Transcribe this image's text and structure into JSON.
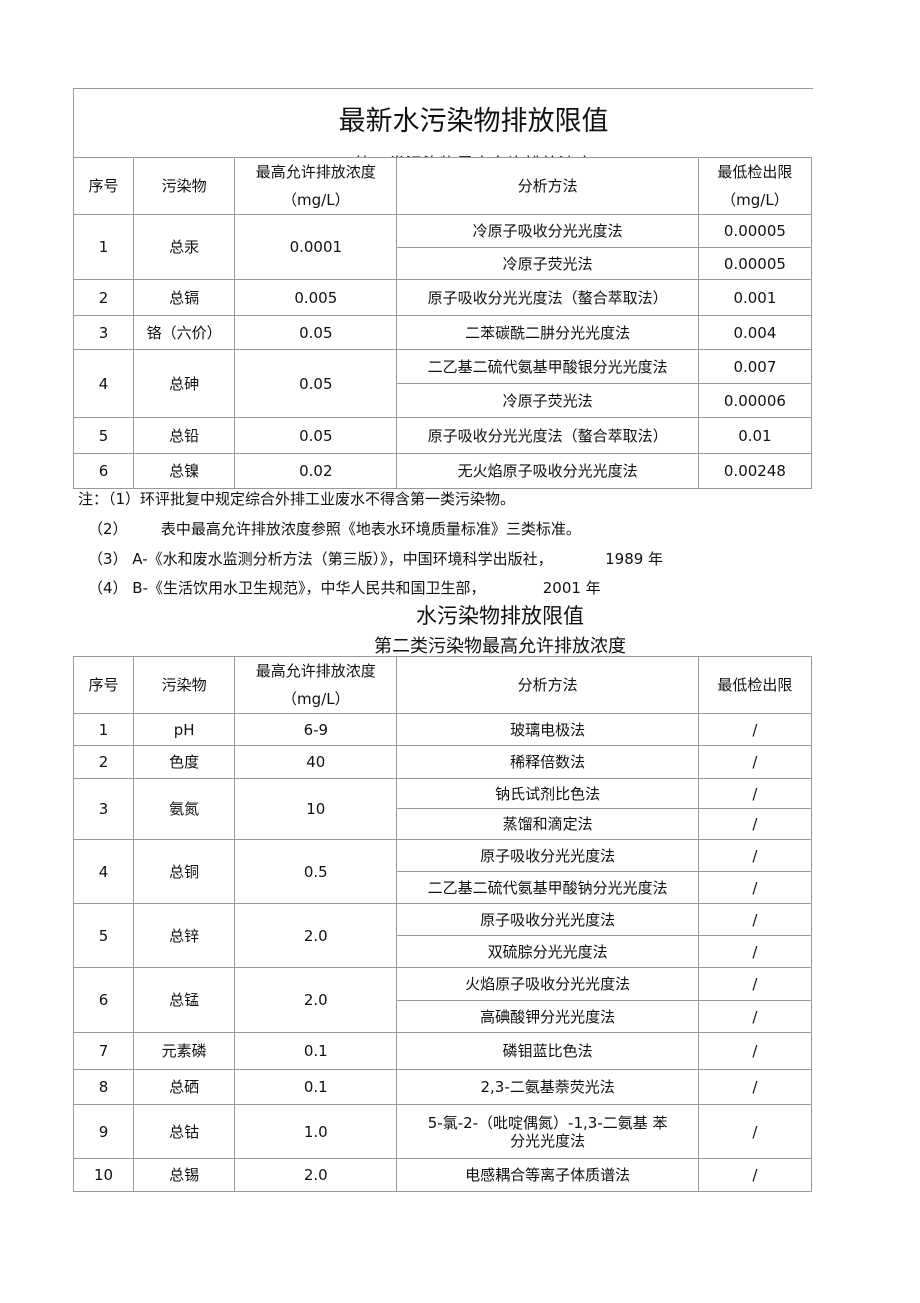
{
  "doc": {
    "title": "最新水污染物排放限值",
    "subtitle1": "第一类污染物最高允许排放浓度",
    "headers1": [
      "序号",
      "污染物",
      "最高允许排放浓度\n（mg/L）",
      "分析方法",
      "最低检出限\n（mg/L）"
    ],
    "table1": [
      {
        "no": "1",
        "name": "总汞",
        "limit": "0.0001",
        "methods": [
          [
            "冷原子吸收分光光度法",
            "0.00005"
          ],
          [
            "冷原子荧光法",
            "0.00005"
          ]
        ]
      },
      {
        "no": "2",
        "name": "总镉",
        "limit": "0.005",
        "methods": [
          [
            "原子吸收分光光度法（螯合萃取法）",
            "0.001"
          ]
        ]
      },
      {
        "no": "3",
        "name": "铬（六价）",
        "limit": "0.05",
        "methods": [
          [
            "二苯碳酰二肼分光光度法",
            "0.004"
          ]
        ]
      },
      {
        "no": "4",
        "name": "总砷",
        "limit": "0.05",
        "methods": [
          [
            "二乙基二硫代氨基甲酸银分光光度法",
            "0.007"
          ],
          [
            "冷原子荧光法",
            "0.00006"
          ]
        ]
      },
      {
        "no": "5",
        "name": "总铅",
        "limit": "0.05",
        "methods": [
          [
            "原子吸收分光光度法（螯合萃取法）",
            "0.01"
          ]
        ]
      },
      {
        "no": "6",
        "name": "总镍",
        "limit": "0.02",
        "methods": [
          [
            "无火焰原子吸收分光光度法",
            "0.00248"
          ]
        ]
      }
    ],
    "notes": [
      "注：（1）环评批复中规定综合外排工业废水不得含第一类污染物。",
      "（2）       表中最高允许排放浓度参照《地表水环境质量标准》三类标准。",
      "（3） A-《水和废水监测分析方法（第三版）》，中国环境科学出版社，           1989 年",
      "（4） B-《生活饮用水卫生规范》，中华人民共和国卫生部，            2001 年"
    ],
    "title2": "水污染物排放限值",
    "subtitle2": "第二类污染物最高允许排放浓度",
    "headers2": [
      "序号",
      "污染物",
      "最高允许排放浓度\n（mg/L）",
      "分析方法",
      "最低检出限"
    ],
    "table2": [
      {
        "no": "1",
        "name": "pH",
        "limit": "6-9",
        "methods": [
          [
            "玻璃电极法",
            "/"
          ]
        ]
      },
      {
        "no": "2",
        "name": "色度",
        "limit": "40",
        "methods": [
          [
            "稀释倍数法",
            "/"
          ]
        ]
      },
      {
        "no": "3",
        "name": "氨氮",
        "limit": "10",
        "methods": [
          [
            "钠氏试剂比色法",
            "/"
          ],
          [
            "蒸馏和滴定法",
            "/"
          ]
        ]
      },
      {
        "no": "4",
        "name": "总铜",
        "limit": "0.5",
        "methods": [
          [
            "原子吸收分光光度法",
            "/"
          ],
          [
            "二乙基二硫代氨基甲酸钠分光光度法",
            "/"
          ]
        ]
      },
      {
        "no": "5",
        "name": "总锌",
        "limit": "2.0",
        "methods": [
          [
            "原子吸收分光光度法",
            "/"
          ],
          [
            "双硫腙分光光度法",
            "/"
          ]
        ]
      },
      {
        "no": "6",
        "name": "总锰",
        "limit": "2.0",
        "methods": [
          [
            "火焰原子吸收分光光度法",
            "/"
          ],
          [
            "高碘酸钾分光光度法",
            "/"
          ]
        ]
      },
      {
        "no": "7",
        "name": "元素磷",
        "limit": "0.1",
        "methods": [
          [
            "磷钼蓝比色法",
            "/"
          ]
        ]
      },
      {
        "no": "8",
        "name": "总硒",
        "limit": "0.1",
        "methods": [
          [
            "2,3-二氨基萘荧光法",
            "/"
          ]
        ]
      },
      {
        "no": "9",
        "name": "总钴",
        "limit": "1.0",
        "methods": [
          [
            "5-氯-2-（吡啶偶氮）-1,3-二氨基 苯\n分光光度法",
            "/"
          ]
        ]
      },
      {
        "no": "10",
        "name": "总锡",
        "limit": "2.0",
        "methods": [
          [
            "电感耦合等离子体质谱法",
            "/"
          ]
        ]
      }
    ]
  }
}
